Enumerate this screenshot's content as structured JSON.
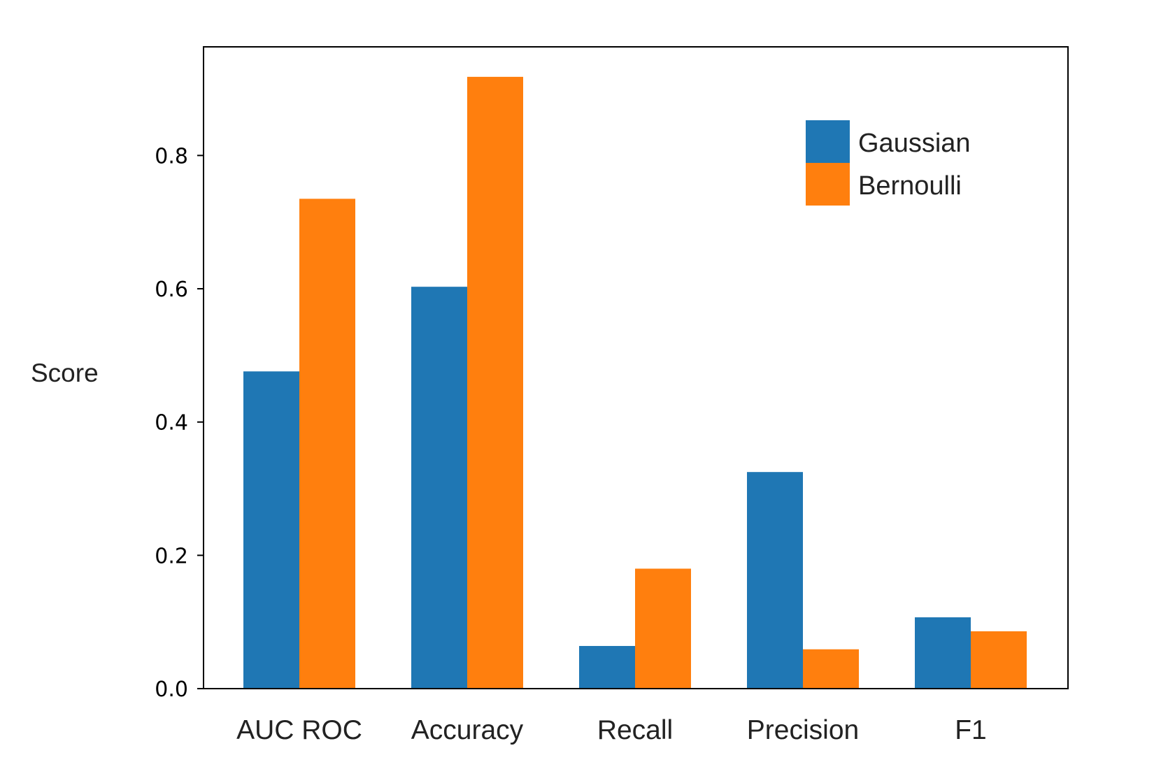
{
  "chart_data": {
    "type": "bar",
    "title": "",
    "xlabel": "",
    "ylabel": "Score",
    "categories": [
      "AUC ROC",
      "Accuracy",
      "Recall",
      "Precision",
      "F1"
    ],
    "series": [
      {
        "name": "Gaussian",
        "color": "#1f77b4",
        "values": [
          0.476,
          0.603,
          0.064,
          0.325,
          0.107
        ]
      },
      {
        "name": "Bernoulli",
        "color": "#ff7f0e",
        "values": [
          0.735,
          0.918,
          0.18,
          0.059,
          0.086
        ]
      }
    ],
    "ylim": [
      0,
      0.963
    ],
    "yticks": [
      "0.0",
      "0.2",
      "0.4",
      "0.6",
      "0.8"
    ],
    "grid": false,
    "legend_position": "top-right"
  }
}
